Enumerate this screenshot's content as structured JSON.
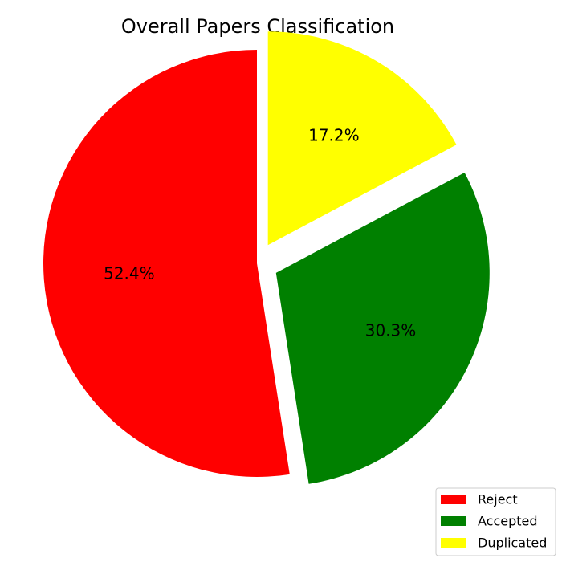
{
  "chart_data": {
    "type": "pie",
    "title": "Overall Papers Classification",
    "slices": [
      {
        "label": "Reject",
        "value": 52.4,
        "percent_label": "52.4%",
        "color": "#ff0000",
        "exploded": false
      },
      {
        "label": "Accepted",
        "value": 30.3,
        "percent_label": "30.3%",
        "color": "#008000",
        "exploded": true
      },
      {
        "label": "Duplicated",
        "value": 17.2,
        "percent_label": "17.2%",
        "color": "#ffff00",
        "exploded": true
      }
    ],
    "legend": {
      "position": "bottom-right",
      "entries": [
        "Reject",
        "Accepted",
        "Duplicated"
      ]
    }
  }
}
